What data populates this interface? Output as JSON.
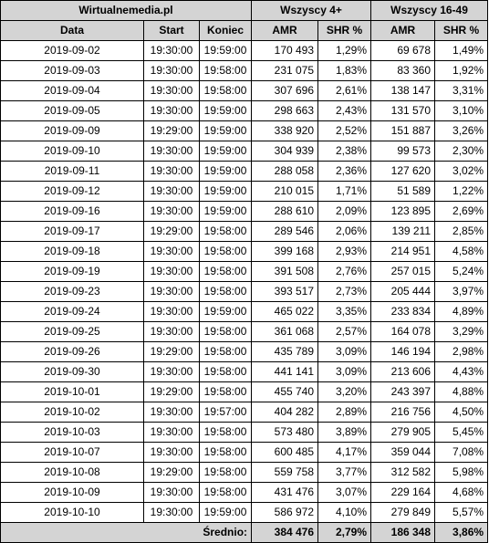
{
  "header": {
    "source": "Wirtualnemedia.pl",
    "group_all": "Wszyscy 4+",
    "group_commercial": "Wszyscy 16-49"
  },
  "columns": {
    "date": "Data",
    "start": "Start",
    "end": "Koniec",
    "amr_all": "AMR",
    "shr_all": "SHR %",
    "amr_commercial": "AMR",
    "shr_commercial": "SHR %"
  },
  "rows": [
    {
      "date": "2019-09-02",
      "start": "19:30:00",
      "end": "19:59:00",
      "amr_all": "170 493",
      "shr_all": "1,29%",
      "amr_commercial": "69 678",
      "shr_commercial": "1,49%"
    },
    {
      "date": "2019-09-03",
      "start": "19:30:00",
      "end": "19:58:00",
      "amr_all": "231 075",
      "shr_all": "1,83%",
      "amr_commercial": "83 360",
      "shr_commercial": "1,92%"
    },
    {
      "date": "2019-09-04",
      "start": "19:30:00",
      "end": "19:58:00",
      "amr_all": "307 696",
      "shr_all": "2,61%",
      "amr_commercial": "138 147",
      "shr_commercial": "3,31%"
    },
    {
      "date": "2019-09-05",
      "start": "19:30:00",
      "end": "19:59:00",
      "amr_all": "298 663",
      "shr_all": "2,43%",
      "amr_commercial": "131 570",
      "shr_commercial": "3,10%"
    },
    {
      "date": "2019-09-09",
      "start": "19:29:00",
      "end": "19:59:00",
      "amr_all": "338 920",
      "shr_all": "2,52%",
      "amr_commercial": "151 887",
      "shr_commercial": "3,26%"
    },
    {
      "date": "2019-09-10",
      "start": "19:30:00",
      "end": "19:59:00",
      "amr_all": "304 939",
      "shr_all": "2,38%",
      "amr_commercial": "99 573",
      "shr_commercial": "2,30%"
    },
    {
      "date": "2019-09-11",
      "start": "19:30:00",
      "end": "19:59:00",
      "amr_all": "288 058",
      "shr_all": "2,36%",
      "amr_commercial": "127 620",
      "shr_commercial": "3,02%"
    },
    {
      "date": "2019-09-12",
      "start": "19:30:00",
      "end": "19:59:00",
      "amr_all": "210 015",
      "shr_all": "1,71%",
      "amr_commercial": "51 589",
      "shr_commercial": "1,22%"
    },
    {
      "date": "2019-09-16",
      "start": "19:30:00",
      "end": "19:59:00",
      "amr_all": "288 610",
      "shr_all": "2,09%",
      "amr_commercial": "123 895",
      "shr_commercial": "2,69%"
    },
    {
      "date": "2019-09-17",
      "start": "19:29:00",
      "end": "19:58:00",
      "amr_all": "289 546",
      "shr_all": "2,06%",
      "amr_commercial": "139 211",
      "shr_commercial": "2,85%"
    },
    {
      "date": "2019-09-18",
      "start": "19:30:00",
      "end": "19:58:00",
      "amr_all": "399 168",
      "shr_all": "2,93%",
      "amr_commercial": "214 951",
      "shr_commercial": "4,58%"
    },
    {
      "date": "2019-09-19",
      "start": "19:30:00",
      "end": "19:58:00",
      "amr_all": "391 508",
      "shr_all": "2,76%",
      "amr_commercial": "257 015",
      "shr_commercial": "5,24%"
    },
    {
      "date": "2019-09-23",
      "start": "19:30:00",
      "end": "19:58:00",
      "amr_all": "393 517",
      "shr_all": "2,73%",
      "amr_commercial": "205 444",
      "shr_commercial": "3,97%"
    },
    {
      "date": "2019-09-24",
      "start": "19:30:00",
      "end": "19:59:00",
      "amr_all": "465 022",
      "shr_all": "3,35%",
      "amr_commercial": "233 834",
      "shr_commercial": "4,89%"
    },
    {
      "date": "2019-09-25",
      "start": "19:30:00",
      "end": "19:58:00",
      "amr_all": "361 068",
      "shr_all": "2,57%",
      "amr_commercial": "164 078",
      "shr_commercial": "3,29%"
    },
    {
      "date": "2019-09-26",
      "start": "19:29:00",
      "end": "19:58:00",
      "amr_all": "435 789",
      "shr_all": "3,09%",
      "amr_commercial": "146 194",
      "shr_commercial": "2,98%"
    },
    {
      "date": "2019-09-30",
      "start": "19:30:00",
      "end": "19:58:00",
      "amr_all": "441 141",
      "shr_all": "3,09%",
      "amr_commercial": "213 606",
      "shr_commercial": "4,43%"
    },
    {
      "date": "2019-10-01",
      "start": "19:29:00",
      "end": "19:58:00",
      "amr_all": "455 740",
      "shr_all": "3,20%",
      "amr_commercial": "243 397",
      "shr_commercial": "4,88%"
    },
    {
      "date": "2019-10-02",
      "start": "19:30:00",
      "end": "19:57:00",
      "amr_all": "404 282",
      "shr_all": "2,89%",
      "amr_commercial": "216 756",
      "shr_commercial": "4,50%"
    },
    {
      "date": "2019-10-03",
      "start": "19:30:00",
      "end": "19:58:00",
      "amr_all": "573 480",
      "shr_all": "3,89%",
      "amr_commercial": "279 905",
      "shr_commercial": "5,45%"
    },
    {
      "date": "2019-10-07",
      "start": "19:30:00",
      "end": "19:58:00",
      "amr_all": "600 485",
      "shr_all": "4,17%",
      "amr_commercial": "359 044",
      "shr_commercial": "7,08%"
    },
    {
      "date": "2019-10-08",
      "start": "19:29:00",
      "end": "19:58:00",
      "amr_all": "559 758",
      "shr_all": "3,77%",
      "amr_commercial": "312 582",
      "shr_commercial": "5,98%"
    },
    {
      "date": "2019-10-09",
      "start": "19:30:00",
      "end": "19:58:00",
      "amr_all": "431 476",
      "shr_all": "3,07%",
      "amr_commercial": "229 164",
      "shr_commercial": "4,68%"
    },
    {
      "date": "2019-10-10",
      "start": "19:30:00",
      "end": "19:59:00",
      "amr_all": "586 972",
      "shr_all": "4,10%",
      "amr_commercial": "279 849",
      "shr_commercial": "5,57%"
    }
  ],
  "footer": {
    "label": "Średnio:",
    "amr_all": "384 476",
    "shr_all": "2,79%",
    "amr_commercial": "186 348",
    "shr_commercial": "3,86%"
  }
}
